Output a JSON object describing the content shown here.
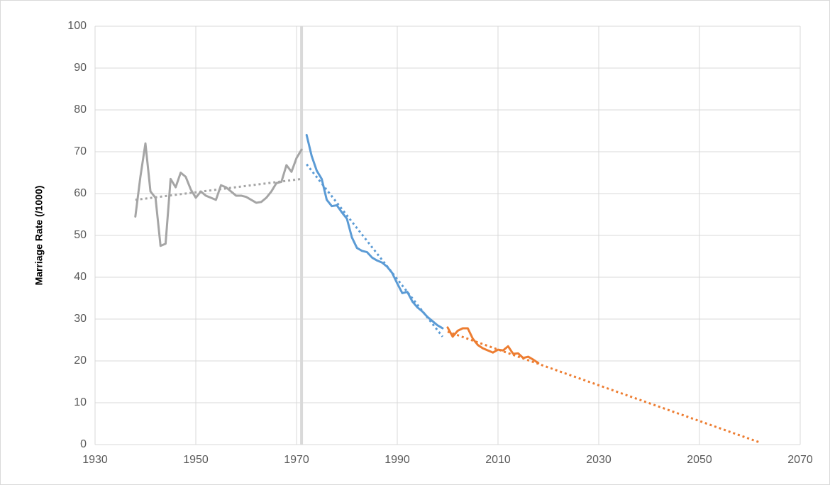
{
  "chart_data": {
    "type": "line",
    "y_label": "Marriage Rate (/1000)",
    "xlim": [
      1930,
      2070
    ],
    "xticks": [
      1930,
      1950,
      1970,
      1990,
      2010,
      2030,
      2050,
      2070
    ],
    "ylim": [
      0,
      100
    ],
    "yticks": [
      0,
      10,
      20,
      30,
      40,
      50,
      60,
      70,
      80,
      90,
      100
    ],
    "grid": true,
    "reference_line": {
      "x": 1971,
      "color": "#d9d9d9"
    },
    "series": [
      {
        "color": "#a5a5a5",
        "style": "solid",
        "x": [
          1938,
          1939,
          1940,
          1941,
          1942,
          1943,
          1944,
          1945,
          1946,
          1947,
          1948,
          1949,
          1950,
          1951,
          1952,
          1953,
          1954,
          1955,
          1956,
          1957,
          1958,
          1959,
          1960,
          1961,
          1962,
          1963,
          1964,
          1965,
          1966,
          1967,
          1968,
          1969,
          1970,
          1971
        ],
        "values": [
          54.5,
          64,
          72,
          60.5,
          59,
          47.5,
          48,
          63.5,
          61.5,
          65,
          64,
          61,
          59,
          60.5,
          59.5,
          59,
          58.5,
          62,
          61.5,
          60.5,
          59.5,
          59.5,
          59.2,
          58.5,
          57.8,
          58,
          59,
          60.5,
          62.5,
          62.8,
          66.8,
          65.2,
          68.5,
          70.5
        ]
      },
      {
        "color": "#a5a5a5",
        "style": "dotted",
        "x": [
          1938,
          1971
        ],
        "values": [
          58.5,
          63.5
        ]
      },
      {
        "color": "#5b9bd5",
        "style": "solid",
        "x": [
          1972,
          1973,
          1974,
          1975,
          1976,
          1977,
          1978,
          1979,
          1980,
          1981,
          1982,
          1983,
          1984,
          1985,
          1986,
          1987,
          1988,
          1989,
          1990,
          1991,
          1992,
          1993,
          1994,
          1995,
          1996,
          1997,
          1998,
          1999
        ],
        "values": [
          74,
          69,
          65.5,
          63.5,
          58.5,
          57,
          57.2,
          55.5,
          54,
          49.5,
          47,
          46.3,
          46,
          44.7,
          44,
          43.5,
          42.5,
          41,
          38.5,
          36.2,
          36.5,
          34.2,
          32.8,
          31.8,
          30.5,
          29.5,
          28.5,
          27.8
        ]
      },
      {
        "color": "#5b9bd5",
        "style": "dotted",
        "x": [
          1972,
          1999
        ],
        "values": [
          67,
          25.8
        ]
      },
      {
        "color": "#ed7d31",
        "style": "solid",
        "x": [
          2000,
          2001,
          2002,
          2003,
          2004,
          2005,
          2006,
          2007,
          2008,
          2009,
          2010,
          2011,
          2012,
          2013,
          2014,
          2015,
          2016,
          2017,
          2018
        ],
        "values": [
          28,
          25.8,
          27.2,
          27.8,
          27.8,
          25.3,
          23.8,
          23,
          22.5,
          22,
          22.7,
          22.5,
          23.5,
          21.7,
          21.8,
          20.7,
          21,
          20.3,
          19.5
        ]
      },
      {
        "color": "#ed7d31",
        "style": "dotted",
        "x": [
          2000,
          2062
        ],
        "values": [
          27,
          0.5
        ]
      }
    ]
  }
}
